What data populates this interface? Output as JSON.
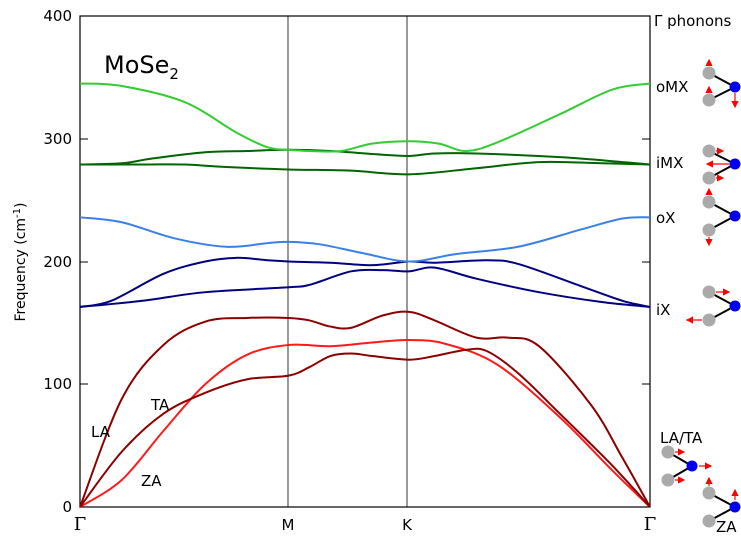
{
  "chart_data": {
    "type": "line",
    "title_main": "MoSe",
    "title_sub": "2",
    "ylabel": "Frequency (cm",
    "ylabel_sup": "-1",
    "ylabel_end": ")",
    "ylim": [
      0,
      400
    ],
    "yticks": [
      "0",
      "100",
      "200",
      "300",
      "400"
    ],
    "yticks_values": [
      0,
      100,
      200,
      300,
      400
    ],
    "x_points": [
      {
        "label": "Γ",
        "x": 0.0
      },
      {
        "label": "M",
        "x": 1.0
      },
      {
        "label": "K",
        "x": 1.577
      },
      {
        "label": "Γ",
        "x": 2.732
      }
    ],
    "branch_labels": {
      "la": "LA",
      "ta": "TA",
      "za": "ZA"
    },
    "right_panel": {
      "heading": "Γ phonons",
      "modes": [
        {
          "label": "oMX",
          "freq": 345
        },
        {
          "label": "iMX",
          "freq": 279
        },
        {
          "label": "oX",
          "freq": 236
        },
        {
          "label": "iX",
          "freq": 163
        },
        {
          "label": "LA/TA",
          "freq": 0
        },
        {
          "label": "ZA",
          "freq": 0
        }
      ]
    },
    "series": [
      {
        "color": "#ff1a1a",
        "points": [
          [
            0,
            0
          ],
          [
            0.2,
            22
          ],
          [
            0.4,
            62
          ],
          [
            0.6,
            100
          ],
          [
            0.8,
            124
          ],
          [
            1.0,
            132
          ],
          [
            1.2,
            131
          ],
          [
            1.4,
            134
          ],
          [
            1.577,
            136
          ],
          [
            1.75,
            133
          ],
          [
            2.0,
            116
          ],
          [
            2.3,
            73
          ],
          [
            2.55,
            30
          ],
          [
            2.732,
            0
          ]
        ]
      },
      {
        "color": "#8b0000",
        "points": [
          [
            0,
            0
          ],
          [
            0.2,
            45
          ],
          [
            0.4,
            76
          ],
          [
            0.6,
            93
          ],
          [
            0.8,
            104
          ],
          [
            1.0,
            107
          ],
          [
            1.1,
            114
          ],
          [
            1.2,
            123
          ],
          [
            1.3,
            125
          ],
          [
            1.4,
            123
          ],
          [
            1.577,
            120
          ],
          [
            1.7,
            123
          ],
          [
            1.85,
            128
          ],
          [
            1.95,
            127
          ],
          [
            2.1,
            109
          ],
          [
            2.3,
            76
          ],
          [
            2.55,
            34
          ],
          [
            2.732,
            0
          ]
        ]
      },
      {
        "color": "#8b0000",
        "points": [
          [
            0,
            0
          ],
          [
            0.2,
            88
          ],
          [
            0.4,
            132
          ],
          [
            0.6,
            151
          ],
          [
            0.8,
            154
          ],
          [
            1.0,
            154
          ],
          [
            1.1,
            152
          ],
          [
            1.2,
            147
          ],
          [
            1.3,
            146
          ],
          [
            1.45,
            156
          ],
          [
            1.577,
            159
          ],
          [
            1.7,
            152
          ],
          [
            1.9,
            138
          ],
          [
            2.05,
            138
          ],
          [
            2.2,
            131
          ],
          [
            2.45,
            83
          ],
          [
            2.6,
            40
          ],
          [
            2.732,
            0
          ]
        ]
      },
      {
        "color": "#000080",
        "points": [
          [
            0,
            163
          ],
          [
            0.3,
            168
          ],
          [
            0.6,
            175
          ],
          [
            1.0,
            179
          ],
          [
            1.1,
            181
          ],
          [
            1.3,
            192
          ],
          [
            1.45,
            193
          ],
          [
            1.577,
            192
          ],
          [
            1.7,
            195
          ],
          [
            1.9,
            186
          ],
          [
            2.2,
            175
          ],
          [
            2.5,
            167
          ],
          [
            2.732,
            163
          ]
        ]
      },
      {
        "color": "#000080",
        "points": [
          [
            0,
            163
          ],
          [
            0.15,
            168
          ],
          [
            0.4,
            190
          ],
          [
            0.6,
            200
          ],
          [
            0.75,
            203
          ],
          [
            0.9,
            201
          ],
          [
            1.0,
            200
          ],
          [
            1.2,
            199
          ],
          [
            1.4,
            197
          ],
          [
            1.577,
            200
          ],
          [
            1.7,
            199
          ],
          [
            1.95,
            201
          ],
          [
            2.1,
            198
          ],
          [
            2.4,
            180
          ],
          [
            2.6,
            168
          ],
          [
            2.732,
            163
          ]
        ]
      },
      {
        "color": "#3c80e6",
        "points": [
          [
            0,
            236
          ],
          [
            0.2,
            232
          ],
          [
            0.45,
            219
          ],
          [
            0.7,
            212
          ],
          [
            0.9,
            215
          ],
          [
            1.0,
            216
          ],
          [
            1.15,
            214
          ],
          [
            1.35,
            207
          ],
          [
            1.577,
            200
          ],
          [
            1.8,
            206
          ],
          [
            2.1,
            212
          ],
          [
            2.4,
            226
          ],
          [
            2.6,
            235
          ],
          [
            2.732,
            236
          ]
        ]
      },
      {
        "color": "#006400",
        "points": [
          [
            0,
            279
          ],
          [
            0.3,
            279
          ],
          [
            0.5,
            279
          ],
          [
            0.7,
            277
          ],
          [
            1.0,
            275
          ],
          [
            1.3,
            274
          ],
          [
            1.577,
            271
          ],
          [
            1.9,
            276
          ],
          [
            2.2,
            281
          ],
          [
            2.5,
            280
          ],
          [
            2.732,
            279
          ]
        ]
      },
      {
        "color": "#006400",
        "points": [
          [
            0,
            279
          ],
          [
            0.2,
            280
          ],
          [
            0.35,
            284
          ],
          [
            0.6,
            289
          ],
          [
            0.8,
            290
          ],
          [
            1.0,
            291
          ],
          [
            1.2,
            290
          ],
          [
            1.45,
            287
          ],
          [
            1.577,
            286
          ],
          [
            1.7,
            288
          ],
          [
            1.9,
            288
          ],
          [
            2.3,
            285
          ],
          [
            2.6,
            281
          ],
          [
            2.732,
            279
          ]
        ]
      },
      {
        "color": "#33cc33",
        "points": [
          [
            0,
            345
          ],
          [
            0.2,
            343
          ],
          [
            0.5,
            330
          ],
          [
            0.75,
            305
          ],
          [
            0.9,
            293
          ],
          [
            1.0,
            291
          ],
          [
            1.1,
            290
          ],
          [
            1.25,
            290
          ],
          [
            1.4,
            296
          ],
          [
            1.577,
            298
          ],
          [
            1.72,
            296
          ],
          [
            1.85,
            290
          ],
          [
            2.0,
            297
          ],
          [
            2.3,
            320
          ],
          [
            2.55,
            340
          ],
          [
            2.732,
            345
          ]
        ]
      }
    ]
  }
}
